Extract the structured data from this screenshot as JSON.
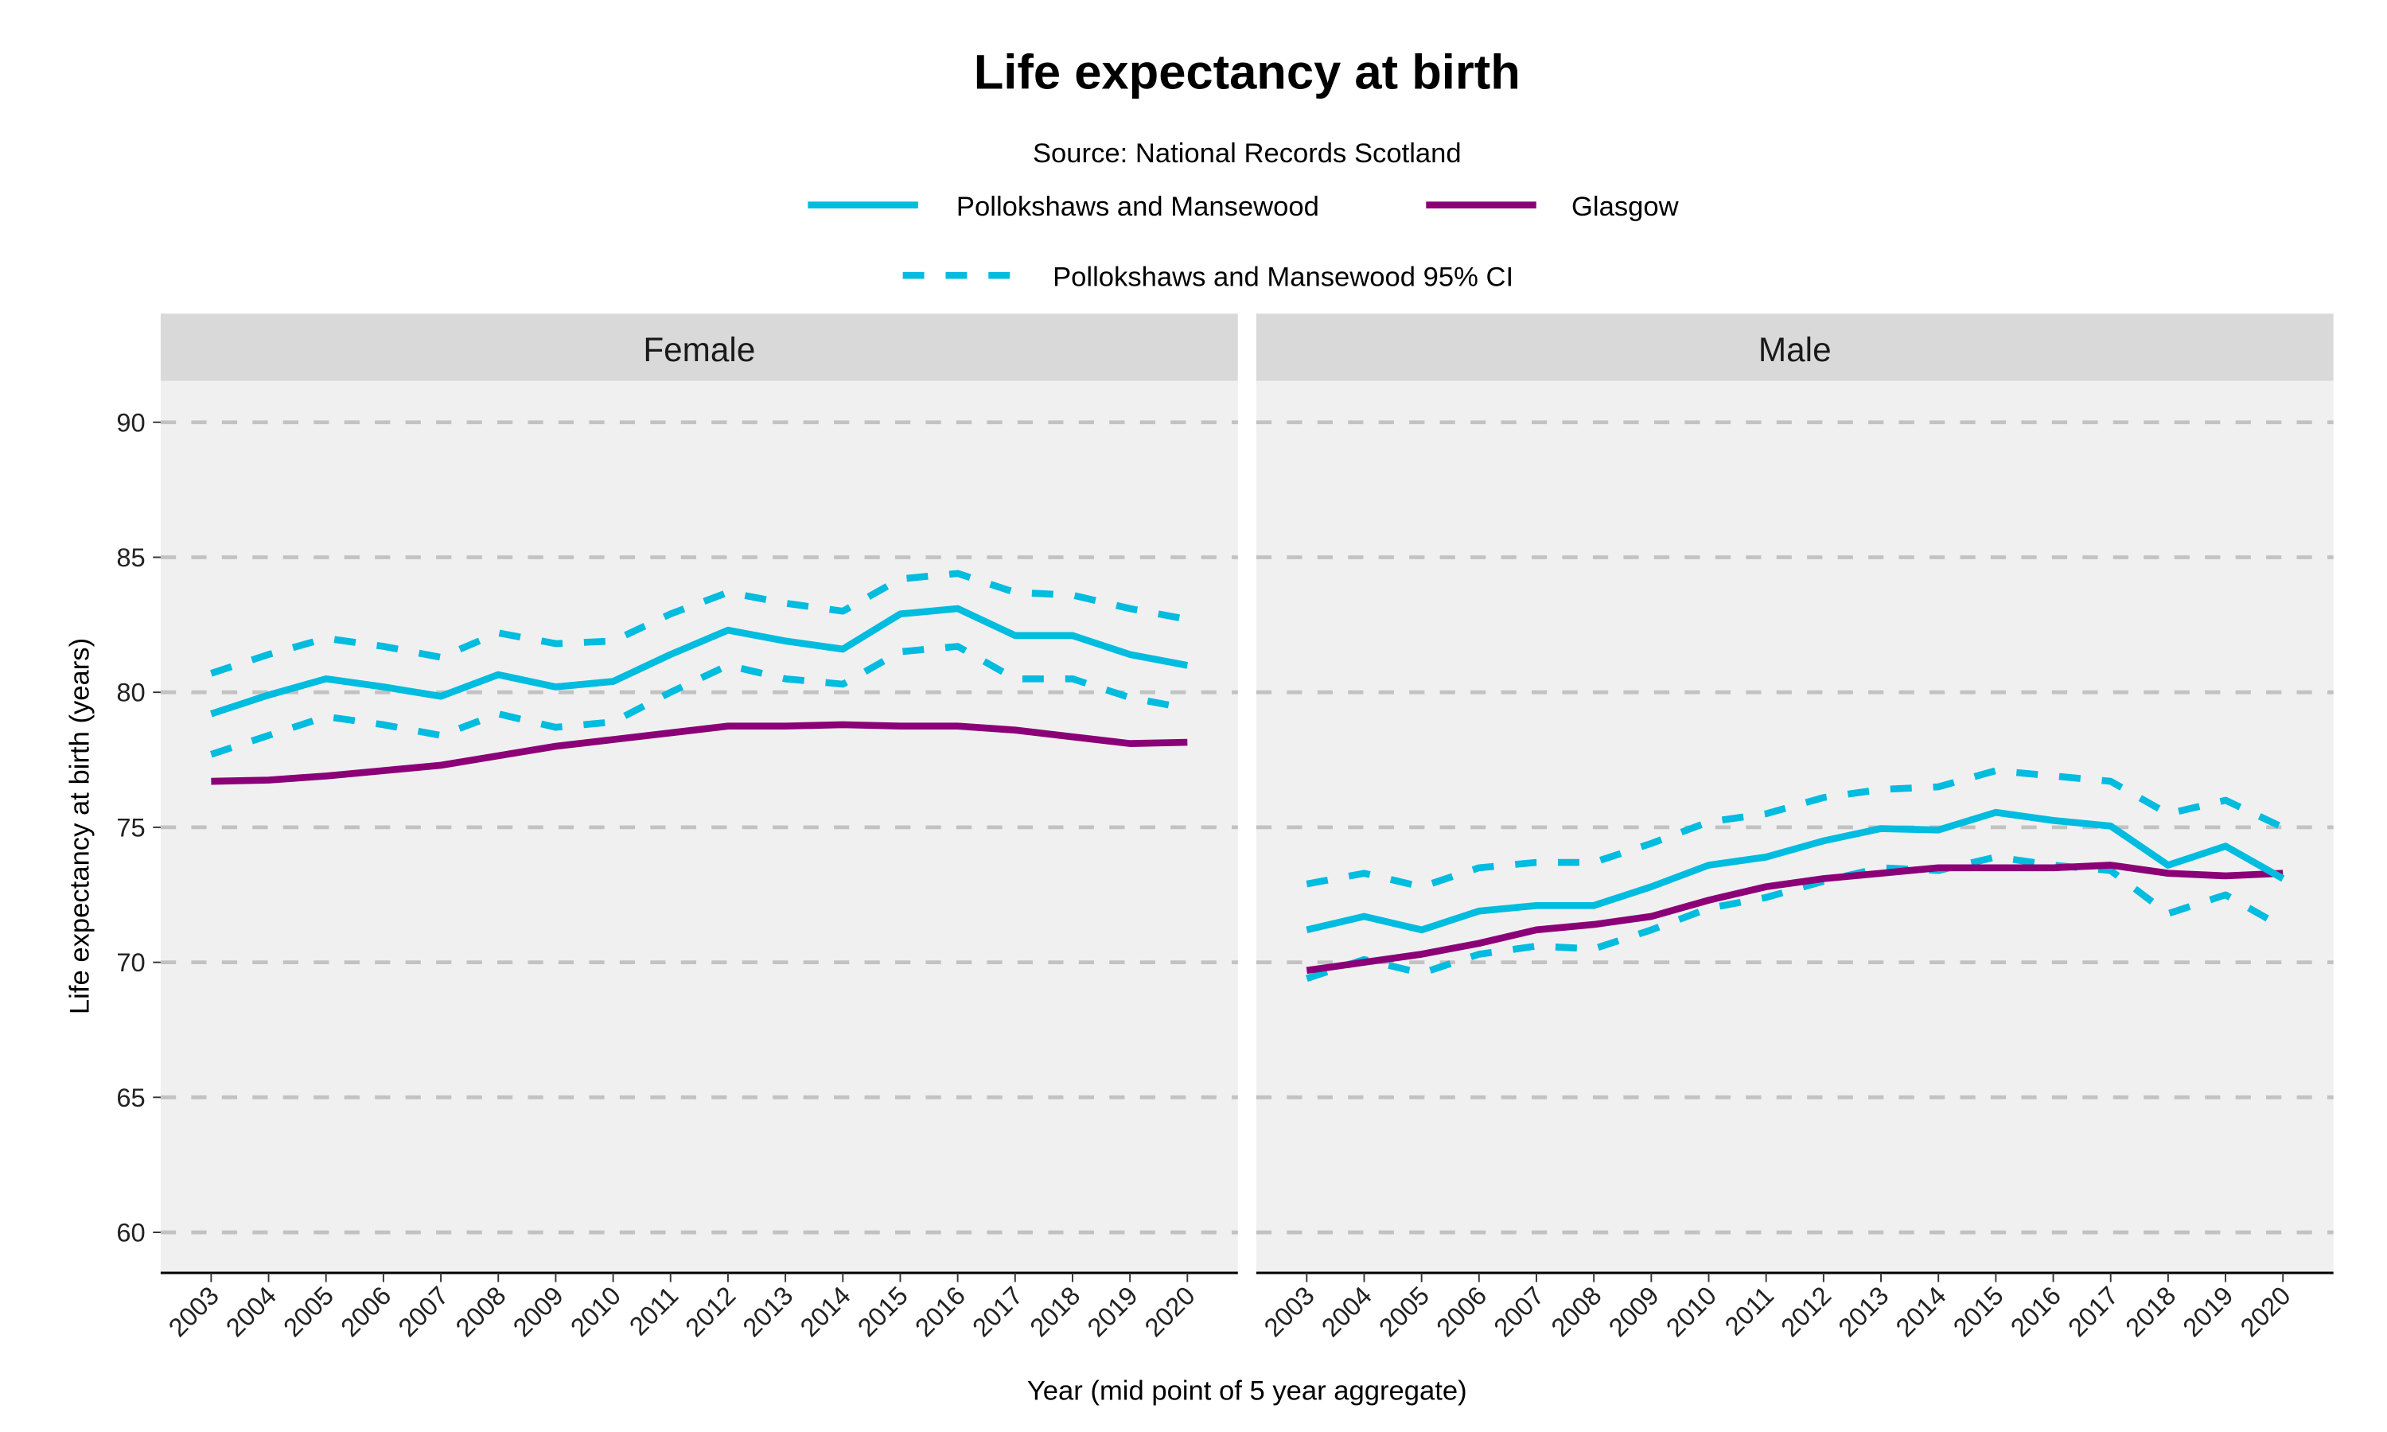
{
  "chart_data": {
    "type": "line",
    "title": "Life expectancy at birth",
    "subtitle": "Source: National Records Scotland",
    "xlabel": "Year (mid point of 5 year aggregate)",
    "ylabel": "Life expectancy at birth (years)",
    "ylim": [
      58.5,
      91.5
    ],
    "yticks": [
      60,
      65,
      70,
      75,
      80,
      85,
      90
    ],
    "grid": "horizontal dashed",
    "legend_position": "top",
    "legend": [
      {
        "label": "Pollokshaws and Mansewood",
        "style": "solid",
        "color": "#00BCDF"
      },
      {
        "label": "Glasgow",
        "style": "solid",
        "color": "#8B0077"
      },
      {
        "label": "Pollokshaws and Mansewood 95% CI",
        "style": "dashed",
        "color": "#00BCDF"
      }
    ],
    "x": [
      "2003",
      "2004",
      "2005",
      "2006",
      "2007",
      "2008",
      "2009",
      "2010",
      "2011",
      "2012",
      "2013",
      "2014",
      "2015",
      "2016",
      "2017",
      "2018",
      "2019",
      "2020"
    ],
    "panels": [
      {
        "label": "Female",
        "series": [
          {
            "name": "Pollokshaws and Mansewood",
            "values": [
              79.2,
              79.9,
              80.5,
              80.2,
              79.85,
              80.65,
              80.2,
              80.4,
              81.4,
              82.3,
              81.9,
              81.6,
              82.9,
              83.1,
              82.1,
              82.1,
              81.4,
              81.0
            ]
          },
          {
            "name": "Glasgow",
            "values": [
              76.7,
              76.75,
              76.9,
              77.1,
              77.3,
              77.65,
              78.0,
              78.25,
              78.5,
              78.75,
              78.75,
              78.8,
              78.75,
              78.75,
              78.6,
              78.35,
              78.1,
              78.15
            ]
          },
          {
            "name": "Pollokshaws and Mansewood 95% CI upper",
            "values": [
              80.7,
              81.4,
              82.0,
              81.7,
              81.3,
              82.2,
              81.8,
              81.9,
              82.9,
              83.7,
              83.3,
              83.0,
              84.2,
              84.4,
              83.7,
              83.6,
              83.1,
              82.7
            ]
          },
          {
            "name": "Pollokshaws and Mansewood 95% CI lower",
            "values": [
              77.7,
              78.4,
              79.1,
              78.8,
              78.4,
              79.2,
              78.7,
              78.9,
              80.0,
              81.0,
              80.5,
              80.3,
              81.5,
              81.7,
              80.5,
              80.5,
              79.8,
              79.4
            ]
          }
        ]
      },
      {
        "label": "Male",
        "series": [
          {
            "name": "Pollokshaws and Mansewood",
            "values": [
              71.2,
              71.7,
              71.2,
              71.9,
              72.1,
              72.1,
              72.8,
              73.6,
              73.9,
              74.5,
              74.95,
              74.9,
              75.55,
              75.25,
              75.05,
              73.6,
              74.3,
              73.1
            ]
          },
          {
            "name": "Glasgow",
            "values": [
              69.7,
              70.0,
              70.3,
              70.7,
              71.2,
              71.4,
              71.7,
              72.3,
              72.8,
              73.1,
              73.3,
              73.5,
              73.5,
              73.5,
              73.6,
              73.3,
              73.2,
              73.3
            ]
          },
          {
            "name": "Pollokshaws and Mansewood 95% CI upper",
            "values": [
              72.9,
              73.3,
              72.8,
              73.5,
              73.7,
              73.7,
              74.4,
              75.2,
              75.5,
              76.1,
              76.4,
              76.5,
              77.1,
              76.9,
              76.7,
              75.5,
              76.0,
              75.0
            ]
          },
          {
            "name": "Pollokshaws and Mansewood 95% CI lower",
            "values": [
              69.4,
              70.1,
              69.6,
              70.3,
              70.6,
              70.5,
              71.2,
              72.0,
              72.4,
              73.0,
              73.5,
              73.4,
              73.9,
              73.6,
              73.4,
              71.8,
              72.5,
              71.3
            ]
          }
        ]
      }
    ]
  }
}
